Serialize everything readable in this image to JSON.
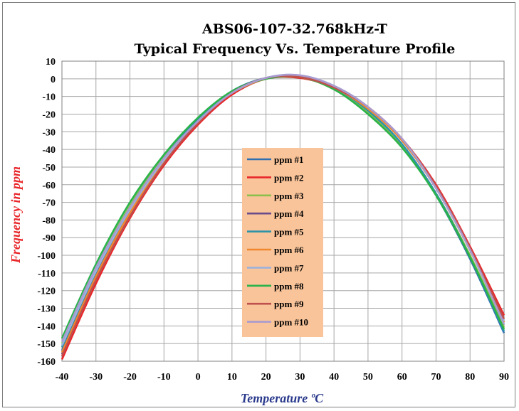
{
  "chart_data": {
    "type": "line",
    "title": "ABS06-107-32.768kHz-T",
    "subtitle": "Typical Frequency Vs. Temperature Profile",
    "xlabel": "Temperature ºC",
    "ylabel": "Frequency in ppm",
    "xlim": [
      -40,
      90
    ],
    "ylim": [
      -160,
      10
    ],
    "x_ticks": [
      -40,
      -30,
      -20,
      -10,
      0,
      10,
      20,
      30,
      40,
      50,
      60,
      70,
      80,
      90
    ],
    "y_ticks": [
      10,
      0,
      -10,
      -20,
      -30,
      -40,
      -50,
      -60,
      -70,
      -80,
      -90,
      -100,
      -110,
      -120,
      -130,
      -140,
      -150,
      -160
    ],
    "grid": true,
    "legend_position": "center",
    "legend_background": "#f9c49a",
    "series": [
      {
        "name": "ppm #1",
        "color": "#2f6fb0",
        "x": [
          -40,
          -30,
          -20,
          -10,
          0,
          10,
          20,
          30,
          40,
          50,
          60,
          70,
          80,
          90
        ],
        "y": [
          -154,
          -110,
          -74,
          -45,
          -23,
          -7,
          0.5,
          1.5,
          -5,
          -18,
          -38,
          -66,
          -102,
          -144
        ]
      },
      {
        "name": "ppm #2",
        "color": "#e8262a",
        "x": [
          -40,
          -30,
          -20,
          -10,
          0,
          10,
          20,
          30,
          40,
          50,
          60,
          70,
          80,
          90
        ],
        "y": [
          -159,
          -116,
          -79,
          -49,
          -26,
          -9,
          0,
          0.5,
          -5,
          -16,
          -34,
          -60,
          -95,
          -134
        ]
      },
      {
        "name": "ppm #3",
        "color": "#8dbf4d",
        "x": [
          -40,
          -30,
          -20,
          -10,
          0,
          10,
          20,
          30,
          40,
          50,
          60,
          70,
          80,
          90
        ],
        "y": [
          -150,
          -107,
          -72,
          -44,
          -23,
          -8,
          0,
          1,
          -6,
          -19,
          -38,
          -65,
          -100,
          -141
        ]
      },
      {
        "name": "ppm #4",
        "color": "#6a4c8c",
        "x": [
          -40,
          -30,
          -20,
          -10,
          0,
          10,
          20,
          30,
          40,
          50,
          60,
          70,
          80,
          90
        ],
        "y": [
          -156,
          -113,
          -77,
          -47,
          -25,
          -8,
          0.5,
          1.5,
          -4,
          -16,
          -35,
          -62,
          -97,
          -138
        ]
      },
      {
        "name": "ppm #5",
        "color": "#2d94a8",
        "x": [
          -40,
          -30,
          -20,
          -10,
          0,
          10,
          20,
          30,
          40,
          50,
          60,
          70,
          80,
          90
        ],
        "y": [
          -152,
          -109,
          -73,
          -45,
          -23,
          -7,
          0.5,
          1.5,
          -5,
          -18,
          -37,
          -65,
          -101,
          -143
        ]
      },
      {
        "name": "ppm #6",
        "color": "#f0882e",
        "x": [
          -40,
          -30,
          -20,
          -10,
          0,
          10,
          20,
          30,
          40,
          50,
          60,
          70,
          80,
          90
        ],
        "y": [
          -155,
          -112,
          -76,
          -47,
          -25,
          -8,
          0,
          1,
          -5,
          -17,
          -35,
          -62,
          -97,
          -138
        ]
      },
      {
        "name": "ppm #7",
        "color": "#9bb2dd",
        "x": [
          -40,
          -30,
          -20,
          -10,
          0,
          10,
          20,
          30,
          40,
          50,
          60,
          70,
          80,
          90
        ],
        "y": [
          -151,
          -109,
          -74,
          -46,
          -24,
          -8,
          0.5,
          2,
          -4,
          -16,
          -34,
          -61,
          -96,
          -137
        ]
      },
      {
        "name": "ppm #8",
        "color": "#2ab34a",
        "x": [
          -40,
          -30,
          -20,
          -10,
          0,
          10,
          20,
          30,
          40,
          50,
          60,
          70,
          80,
          90
        ],
        "y": [
          -147,
          -105,
          -70,
          -43,
          -22,
          -7,
          0,
          1,
          -6,
          -20,
          -39,
          -66,
          -101,
          -142
        ]
      },
      {
        "name": "ppm #9",
        "color": "#c0504d",
        "x": [
          -40,
          -30,
          -20,
          -10,
          0,
          10,
          20,
          30,
          40,
          50,
          60,
          70,
          80,
          90
        ],
        "y": [
          -157,
          -114,
          -78,
          -48,
          -25,
          -8,
          0.5,
          1,
          -5,
          -16,
          -34,
          -61,
          -96,
          -136
        ]
      },
      {
        "name": "ppm #10",
        "color": "#a99bd0",
        "x": [
          -40,
          -30,
          -20,
          -10,
          0,
          10,
          20,
          30,
          40,
          50,
          60,
          70,
          80,
          90
        ],
        "y": [
          -149,
          -107,
          -73,
          -45,
          -24,
          -8,
          0.5,
          2,
          -4,
          -16,
          -34,
          -62,
          -97,
          -139
        ]
      }
    ]
  },
  "colors": {
    "ylabel": "#e8262a",
    "xlabel": "#2a3a8c"
  }
}
